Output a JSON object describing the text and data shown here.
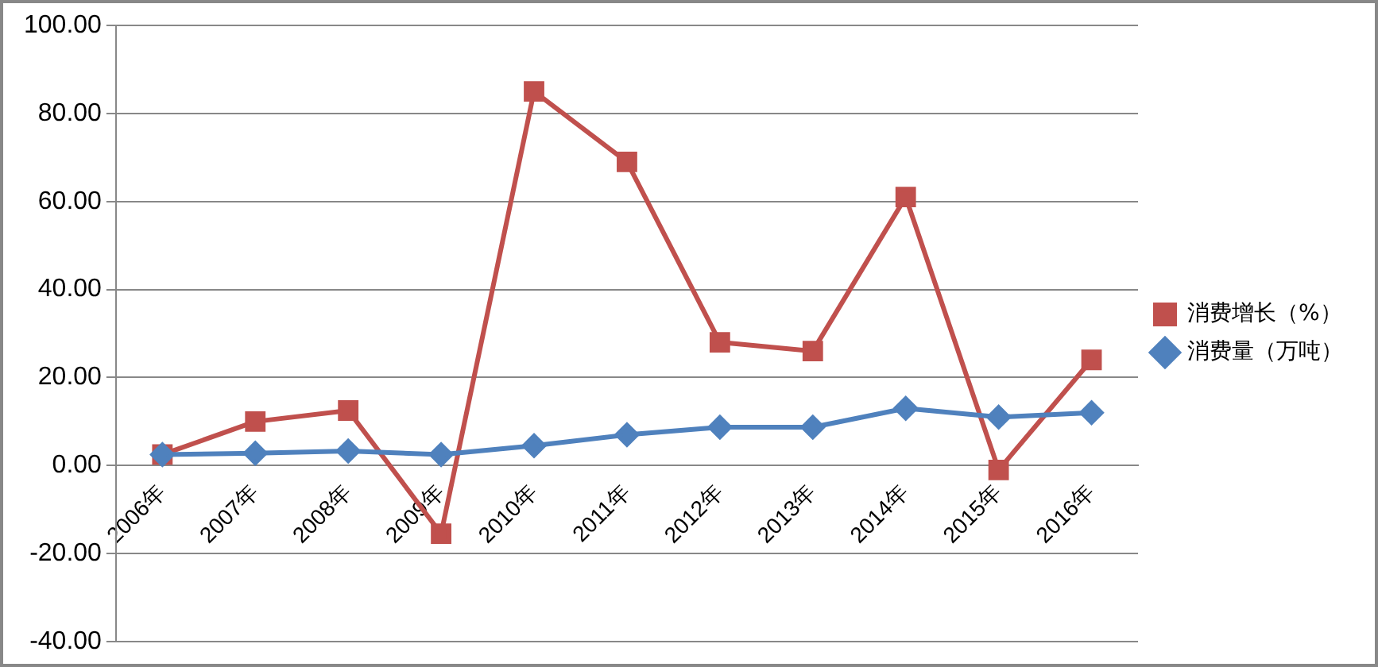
{
  "chart_data": {
    "type": "line",
    "categories": [
      "2006年",
      "2007年",
      "2008年",
      "2009年",
      "2010年",
      "2011年",
      "2012年",
      "2013年",
      "2014年",
      "2015年",
      "2016年"
    ],
    "series": [
      {
        "name": "消费增长（%）",
        "color": "#c0504d",
        "marker": "square",
        "values": [
          2.5,
          10,
          12.5,
          -15.5,
          85,
          69,
          28,
          26,
          61,
          -1,
          24
        ]
      },
      {
        "name": "消费量（万吨）",
        "color": "#4f81bd",
        "marker": "diamond",
        "values": [
          2.5,
          2.8,
          3.3,
          2.5,
          4.5,
          7,
          8.7,
          8.7,
          13,
          11,
          12
        ]
      }
    ],
    "ylim": [
      -40,
      100
    ],
    "yticks": [
      {
        "value": -40,
        "label": "-40.00"
      },
      {
        "value": -20,
        "label": "-20.00"
      },
      {
        "value": 0,
        "label": "0.00"
      },
      {
        "value": 20,
        "label": "20.00"
      },
      {
        "value": 40,
        "label": "40.00"
      },
      {
        "value": 60,
        "label": "60.00"
      },
      {
        "value": 80,
        "label": "80.00"
      },
      {
        "value": 100,
        "label": "100.00"
      }
    ],
    "grid": "y",
    "legend": "right"
  }
}
